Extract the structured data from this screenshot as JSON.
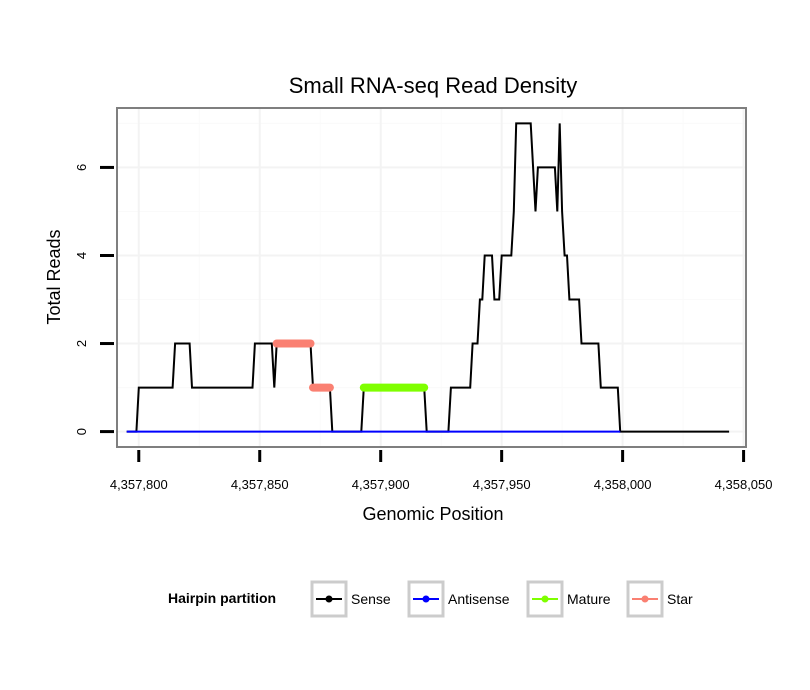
{
  "chart_data": {
    "type": "line",
    "title": "Small RNA-seq Read Density",
    "xlabel": "Genomic Position",
    "ylabel": "Total Reads",
    "xlim": [
      4357791,
      4358051
    ],
    "ylim": [
      -0.35,
      7.35
    ],
    "x_ticks": [
      4357800,
      4357850,
      4357900,
      4357950,
      4358000,
      4358050
    ],
    "x_tick_labels": [
      "4,357,800",
      "4,357,850",
      "4,357,900",
      "4,357,950",
      "4,358,000",
      "4,358,050"
    ],
    "y_ticks": [
      0,
      2,
      4,
      6
    ],
    "y_tick_labels": [
      "0",
      "2",
      "4",
      "6"
    ],
    "legend": {
      "title": "Hairpin partition",
      "position": "bottom",
      "entries": [
        {
          "label": "Sense",
          "color": "#000000"
        },
        {
          "label": "Antisense",
          "color": "#0000ff"
        },
        {
          "label": "Mature",
          "color": "#7fff00"
        },
        {
          "label": "Star",
          "color": "#fa8072"
        }
      ]
    },
    "series": [
      {
        "name": "Sense",
        "color": "#000000",
        "points": [
          [
            4357795,
            0
          ],
          [
            4357799,
            0
          ],
          [
            4357800,
            1
          ],
          [
            4357814,
            1
          ],
          [
            4357815,
            2
          ],
          [
            4357821,
            2
          ],
          [
            4357822,
            1
          ],
          [
            4357847,
            1
          ],
          [
            4357848,
            2
          ],
          [
            4357855,
            2
          ],
          [
            4357856,
            1
          ],
          [
            4357857,
            2
          ],
          [
            4357871,
            2
          ],
          [
            4357872,
            1
          ],
          [
            4357879,
            1
          ],
          [
            4357880,
            0
          ],
          [
            4357892,
            0
          ],
          [
            4357893,
            1
          ],
          [
            4357918,
            1
          ],
          [
            4357919,
            0
          ],
          [
            4357928,
            0
          ],
          [
            4357929,
            1
          ],
          [
            4357937,
            1
          ],
          [
            4357938,
            2
          ],
          [
            4357940,
            2
          ],
          [
            4357941,
            3
          ],
          [
            4357942,
            3
          ],
          [
            4357943,
            4
          ],
          [
            4357946,
            4
          ],
          [
            4357947,
            3
          ],
          [
            4357949,
            3
          ],
          [
            4357950,
            4
          ],
          [
            4357954,
            4
          ],
          [
            4357955,
            5
          ],
          [
            4357956,
            7
          ],
          [
            4357962,
            7
          ],
          [
            4357963,
            6
          ],
          [
            4357964,
            5
          ],
          [
            4357965,
            6
          ],
          [
            4357972,
            6
          ],
          [
            4357973,
            5
          ],
          [
            4357974,
            7
          ],
          [
            4357975,
            5
          ],
          [
            4357976,
            4
          ],
          [
            4357977,
            4
          ],
          [
            4357978,
            3
          ],
          [
            4357982,
            3
          ],
          [
            4357983,
            2
          ],
          [
            4357990,
            2
          ],
          [
            4357991,
            1
          ],
          [
            4357998,
            1
          ],
          [
            4357999,
            0
          ],
          [
            4358044,
            0
          ]
        ]
      },
      {
        "name": "Antisense",
        "color": "#0000ff",
        "points": [
          [
            4357795,
            0
          ],
          [
            4357999,
            0
          ]
        ]
      },
      {
        "name": "Mature",
        "color": "#7fff00",
        "points": [
          [
            4357893,
            1
          ],
          [
            4357918,
            1
          ]
        ]
      },
      {
        "name": "Star",
        "color": "#fa8072",
        "segments": [
          [
            [
              4357857,
              2
            ],
            [
              4357871,
              2
            ]
          ],
          [
            [
              4357872,
              1
            ],
            [
              4357879,
              1
            ]
          ]
        ]
      }
    ]
  }
}
